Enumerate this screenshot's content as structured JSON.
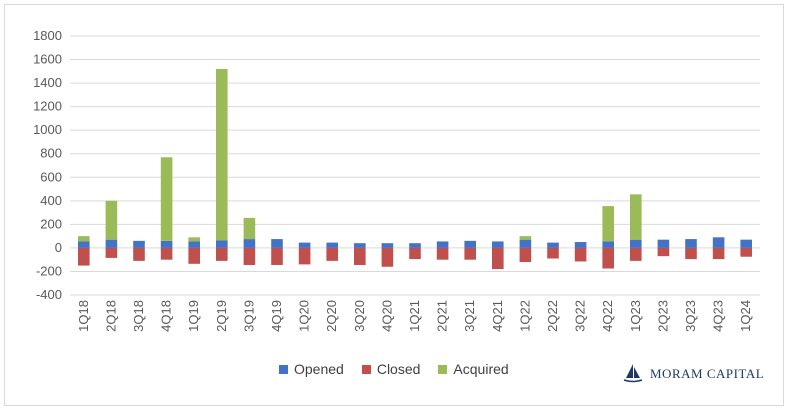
{
  "chart_data": {
    "type": "bar",
    "stacked": true,
    "categories": [
      "1Q18",
      "2Q18",
      "3Q18",
      "4Q18",
      "1Q19",
      "2Q19",
      "3Q19",
      "4Q19",
      "1Q20",
      "2Q20",
      "3Q20",
      "4Q20",
      "1Q21",
      "2Q21",
      "3Q21",
      "4Q21",
      "1Q22",
      "2Q22",
      "3Q22",
      "4Q22",
      "1Q23",
      "2Q23",
      "3Q23",
      "4Q23",
      "1Q24"
    ],
    "series": [
      {
        "name": "Opened",
        "color": "#4472c4",
        "values": [
          55,
          70,
          60,
          60,
          55,
          65,
          75,
          75,
          45,
          45,
          40,
          40,
          40,
          55,
          60,
          55,
          70,
          45,
          50,
          55,
          70,
          70,
          75,
          90,
          70
        ]
      },
      {
        "name": "Closed",
        "color": "#c0504d",
        "values": [
          -150,
          -85,
          -110,
          -100,
          -135,
          -110,
          -145,
          -145,
          -140,
          -110,
          -145,
          -160,
          -95,
          -100,
          -100,
          -180,
          -120,
          -90,
          -115,
          -175,
          -110,
          -70,
          -95,
          -95,
          -75
        ]
      },
      {
        "name": "Acquired",
        "color": "#9bbb59",
        "values": [
          45,
          330,
          0,
          710,
          35,
          1455,
          180,
          0,
          0,
          0,
          0,
          0,
          0,
          0,
          0,
          0,
          30,
          0,
          0,
          300,
          385,
          0,
          0,
          0,
          0
        ]
      }
    ],
    "ylim": [
      -400,
      1800
    ],
    "yticks": [
      "1800",
      "1600",
      "1400",
      "1200",
      "1000",
      "800",
      "600",
      "400",
      "200",
      "0",
      "-200",
      "-400"
    ],
    "grid": true,
    "legend_position": "bottom",
    "title": "",
    "xlabel": "",
    "ylabel": ""
  },
  "logo": {
    "text": "MORAM CAPITAL"
  }
}
